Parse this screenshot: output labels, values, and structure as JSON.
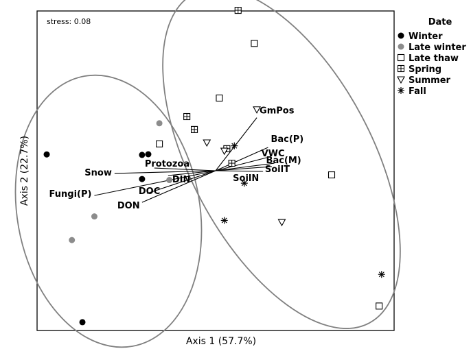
{
  "chart_data": {
    "type": "scatter",
    "subtype": "NMDS ordination biplot",
    "stress_label": "stress: 0.08",
    "xlabel": "Axis 1 (57.7%)",
    "ylabel": "Axis 2 (22.7%)",
    "xlim": [
      -1.0,
      1.0
    ],
    "ylim": [
      -1.0,
      1.0
    ],
    "grid": false,
    "legend": {
      "title": "Date",
      "position": "right",
      "entries": [
        {
          "name": "Winter",
          "marker": "filled-circle",
          "color": "#000000"
        },
        {
          "name": "Late winter",
          "marker": "filled-circle",
          "color": "#8c8c8c"
        },
        {
          "name": "Late thaw",
          "marker": "open-square",
          "color": "#000000"
        },
        {
          "name": "Spring",
          "marker": "boxed-plus",
          "color": "#000000"
        },
        {
          "name": "Summer",
          "marker": "open-triangle-down",
          "color": "#000000"
        },
        {
          "name": "Fall",
          "marker": "asterisk",
          "color": "#000000"
        }
      ]
    },
    "series": [
      {
        "name": "Winter",
        "points": [
          [
            -0.946,
            0.102
          ],
          [
            -0.412,
            0.099
          ],
          [
            -0.377,
            0.103
          ],
          [
            -0.412,
            -0.052
          ],
          [
            -0.746,
            -0.948
          ]
        ]
      },
      {
        "name": "Late winter",
        "points": [
          [
            -0.315,
            0.297
          ],
          [
            -0.259,
            -0.058
          ],
          [
            -0.679,
            -0.286
          ],
          [
            -0.805,
            -0.434
          ]
        ]
      },
      {
        "name": "Late thaw",
        "points": [
          [
            0.217,
            0.797
          ],
          [
            0.021,
            0.455
          ],
          [
            -0.315,
            0.168
          ],
          [
            0.65,
            -0.026
          ],
          [
            0.916,
            -0.847
          ]
        ]
      },
      {
        "name": "Spring",
        "points": [
          [
            0.126,
            1.004
          ],
          [
            -0.161,
            0.339
          ],
          [
            -0.119,
            0.258
          ],
          [
            0.063,
            0.138
          ],
          [
            0.091,
            0.047
          ]
        ]
      },
      {
        "name": "Summer",
        "points": [
          [
            0.231,
            0.383
          ],
          [
            -0.049,
            0.176
          ],
          [
            0.371,
            -0.322
          ],
          [
            0.049,
            0.124
          ]
        ]
      },
      {
        "name": "Fall",
        "points": [
          [
            0.105,
            0.156
          ],
          [
            0.161,
            -0.078
          ],
          [
            0.049,
            -0.311
          ],
          [
            0.93,
            -0.649
          ]
        ]
      }
    ],
    "vectors": {
      "origin": [
        0.0,
        0.0
      ],
      "items": [
        {
          "label": "GmPos",
          "end": [
            0.231,
            0.332
          ]
        },
        {
          "label": "Bac(P)",
          "end": [
            0.294,
            0.146
          ]
        },
        {
          "label": "VWC",
          "end": [
            0.287,
            0.082
          ]
        },
        {
          "label": "Bac(M)",
          "end": [
            0.329,
            0.047
          ]
        },
        {
          "label": "SoilT",
          "end": [
            0.315,
            0.026
          ]
        },
        {
          "label": "SoilN",
          "end": [
            0.266,
            -0.004
          ]
        },
        {
          "label": "Protozoa",
          "end": [
            -0.343,
            0.017
          ]
        },
        {
          "label": "Snow",
          "end": [
            -0.566,
            -0.017
          ]
        },
        {
          "label": "DIN",
          "end": [
            -0.266,
            -0.03
          ]
        },
        {
          "label": "Fungi(P)",
          "end": [
            -0.679,
            -0.155
          ]
        },
        {
          "label": "DOC",
          "end": [
            -0.385,
            -0.142
          ]
        },
        {
          "label": "DON",
          "end": [
            -0.412,
            -0.198
          ]
        }
      ]
    },
    "ellipses": [
      {
        "group": "Winter + Late winter",
        "color": "#808080"
      },
      {
        "group": "Late thaw + Spring + Summer + Fall",
        "color": "#808080"
      }
    ]
  }
}
